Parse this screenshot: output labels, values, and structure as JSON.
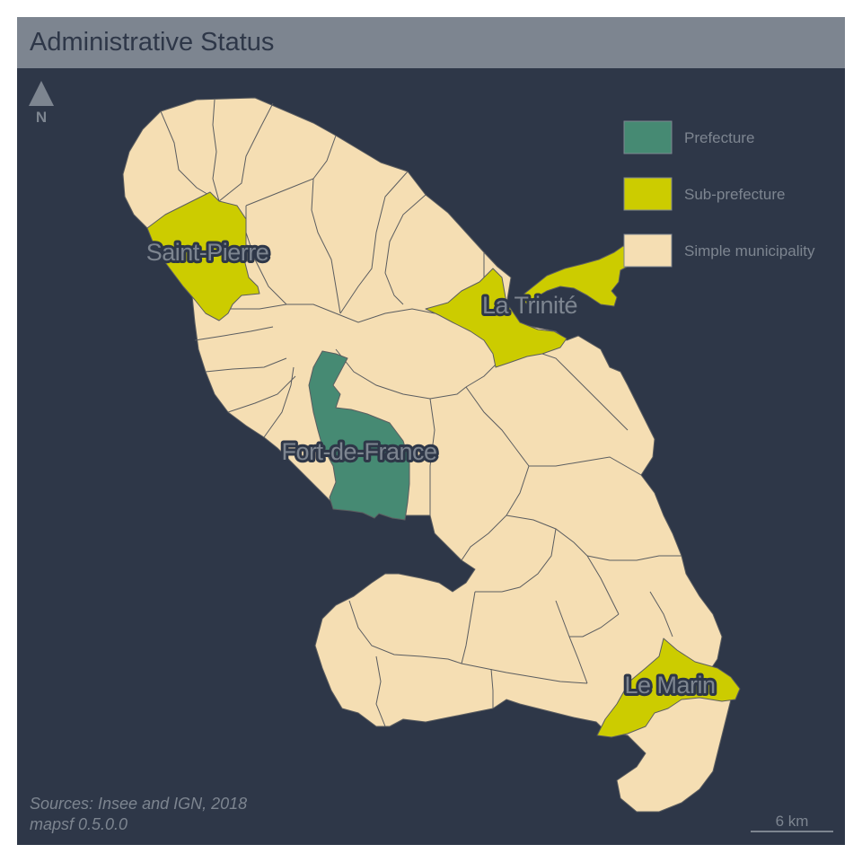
{
  "title": "Administrative Status",
  "legend": {
    "items": [
      {
        "label": "Prefecture",
        "color": "#468a73"
      },
      {
        "label": "Sub-prefecture",
        "color": "#cccc00"
      },
      {
        "label": "Simple municipality",
        "color": "#f5deb3"
      }
    ]
  },
  "labels": {
    "saint_pierre": "Saint-Pierre",
    "la_trinite": "La Trinité",
    "fort_de_france": "Fort-de-France",
    "le_marin": "Le Marin"
  },
  "north_arrow": {
    "letter": "N"
  },
  "scale_bar": {
    "label": "6 km"
  },
  "credits": {
    "line1": "Sources: Insee and IGN, 2018",
    "line2": "mapsf 0.5.0.0"
  },
  "colors": {
    "background": "#2e3748",
    "title_bar": "#7d8590",
    "boundary": "#5b5d60"
  }
}
